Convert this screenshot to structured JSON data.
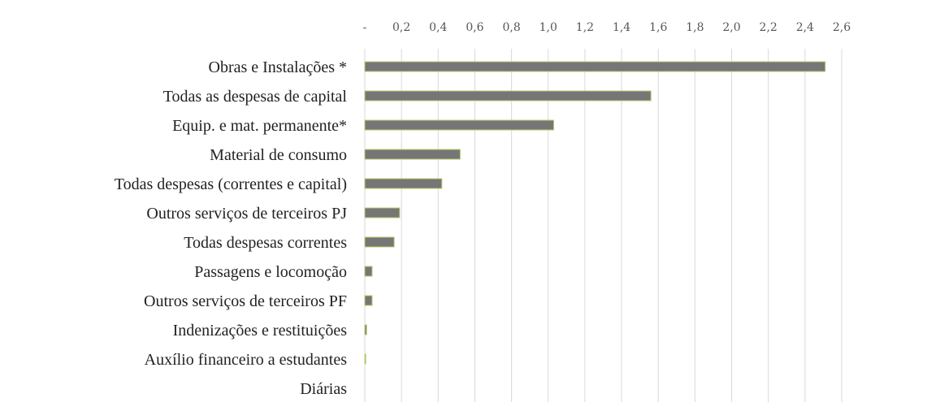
{
  "chart_data": {
    "type": "bar",
    "orientation": "horizontal",
    "title": "",
    "xlabel": "",
    "ylabel": "",
    "x_ticks": [
      "-",
      "0,2",
      "0,4",
      "0,6",
      "0,8",
      "1,0",
      "1,2",
      "1,4",
      "1,6",
      "1,8",
      "2,0",
      "2,2",
      "2,4",
      "2,6"
    ],
    "x_tick_values": [
      0,
      0.2,
      0.4,
      0.6,
      0.8,
      1.0,
      1.2,
      1.4,
      1.6,
      1.8,
      2.0,
      2.2,
      2.4,
      2.6
    ],
    "xlim": [
      0,
      2.6
    ],
    "x_axis_position": "top",
    "grid": true,
    "legend": "none",
    "categories": [
      "Obras e Instalações *",
      "Todas as despesas de capital",
      "Equip. e mat. permanente*",
      "Material de consumo",
      "Todas despesas (correntes e capital)",
      "Outros serviços de terceiros PJ",
      "Todas despesas correntes",
      "Passagens e locomoção",
      "Outros serviços de terceiros PF",
      "Indenizações e restituições",
      "Auxílio financeiro a estudantes",
      "Diárias"
    ],
    "values": [
      2.51,
      1.56,
      1.03,
      0.52,
      0.42,
      0.19,
      0.16,
      0.04,
      0.04,
      0.01,
      0.005,
      0
    ],
    "colors": {
      "bar_fill": "#767676",
      "bar_outline": "#b5cf6b",
      "grid": "#d9d9d9"
    }
  }
}
